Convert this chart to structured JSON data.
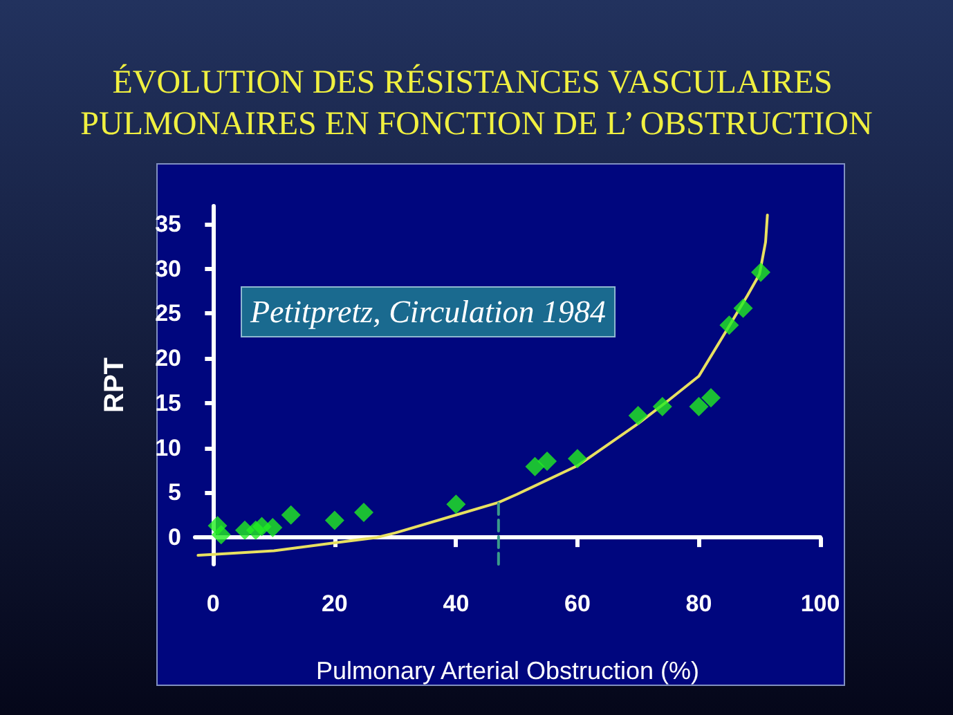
{
  "chart_data": {
    "type": "scatter",
    "title": "ÉVOLUTION DES RÉSISTANCES VASCULAIRES PULMONAIRES EN FONCTION DE L’ OBSTRUCTION",
    "xlabel": "Pulmonary Arterial Obstruction (%)",
    "ylabel": "RPT",
    "annotations": [
      "Petitpretz, Circulation 1984"
    ],
    "xlim": [
      -3,
      100
    ],
    "xticks": [
      0,
      20,
      40,
      60,
      80,
      100
    ],
    "ylim": [
      -3,
      37
    ],
    "yticks": [
      0,
      5,
      10,
      15,
      20,
      25,
      30,
      35
    ],
    "grid": false,
    "series": [
      {
        "marker": "diamond",
        "color": "#22ee22",
        "x": [
          0.7,
          1.3,
          5.2,
          7,
          8,
          9.8,
          12.8,
          20,
          24.8,
          40,
          53,
          55,
          60,
          70,
          74,
          80,
          82,
          85,
          87.3,
          90.2
        ],
        "values": [
          1.3,
          0.3,
          0.8,
          0.8,
          1.2,
          1.1,
          2.5,
          1.9,
          2.8,
          3.7,
          7.9,
          8.5,
          8.8,
          13.6,
          14.6,
          14.6,
          15.6,
          23.7,
          25.6,
          29.6
        ]
      },
      {
        "type": "line",
        "color": "#e8e060",
        "x": [
          -2.5,
          0,
          10,
          20,
          27,
          30,
          40,
          47,
          50,
          60,
          70,
          75,
          80,
          85,
          88,
          90,
          91,
          91.3
        ],
        "values": [
          -2,
          -1.9,
          -1.5,
          -0.6,
          0,
          0.5,
          2.5,
          3.9,
          4.8,
          8,
          12.7,
          15.3,
          18,
          23.6,
          27,
          29.4,
          33,
          36
        ]
      },
      {
        "type": "line",
        "color": "#3a9a8a",
        "line_style": "dashed",
        "x": [
          47,
          47
        ],
        "values": [
          -3,
          4
        ]
      }
    ]
  }
}
